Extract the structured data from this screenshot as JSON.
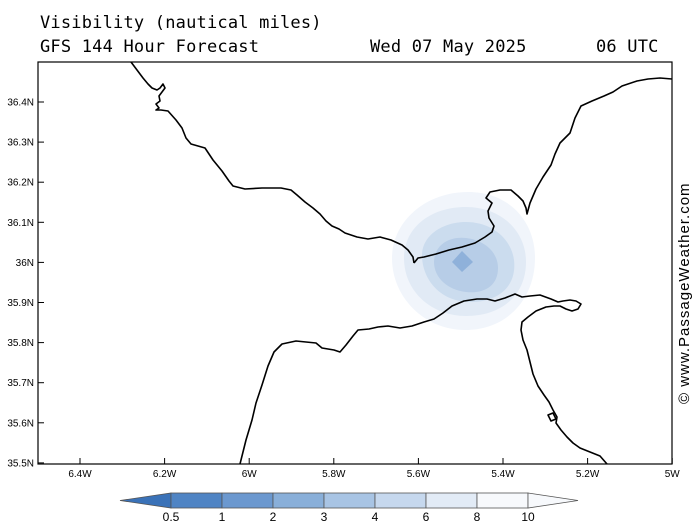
{
  "header": {
    "title": "Visibility (nautical miles)",
    "subtitle": "GFS 144 Hour Forecast",
    "date": "Wed 07 May 2025",
    "time": "06 UTC"
  },
  "credit": "© www.PassageWeather.com",
  "map": {
    "lat_labels": [
      "36.4N",
      "36.3N",
      "36.2N",
      "36.1N",
      "36N",
      "35.9N",
      "35.8N",
      "35.7N",
      "35.6N",
      "35.5N"
    ],
    "lon_labels": [
      "6.4W",
      "6.2W",
      "6W",
      "5.8W",
      "5.6W",
      "5.4W",
      "5.2W",
      "5W"
    ],
    "lat_range": [
      35.5,
      36.5
    ],
    "lon_range": [
      -6.5,
      -5.0
    ],
    "colors": {
      "coast": "#000000",
      "border": "#000000"
    }
  },
  "legend": {
    "labels": [
      "0.5",
      "1",
      "2",
      "3",
      "4",
      "6",
      "8",
      "10"
    ],
    "colors": [
      "#3a72b8",
      "#4f84c4",
      "#6b98cf",
      "#89afd9",
      "#a8c4e4",
      "#c6d8ee",
      "#e2ebf6",
      "#f7f9fc"
    ]
  }
}
